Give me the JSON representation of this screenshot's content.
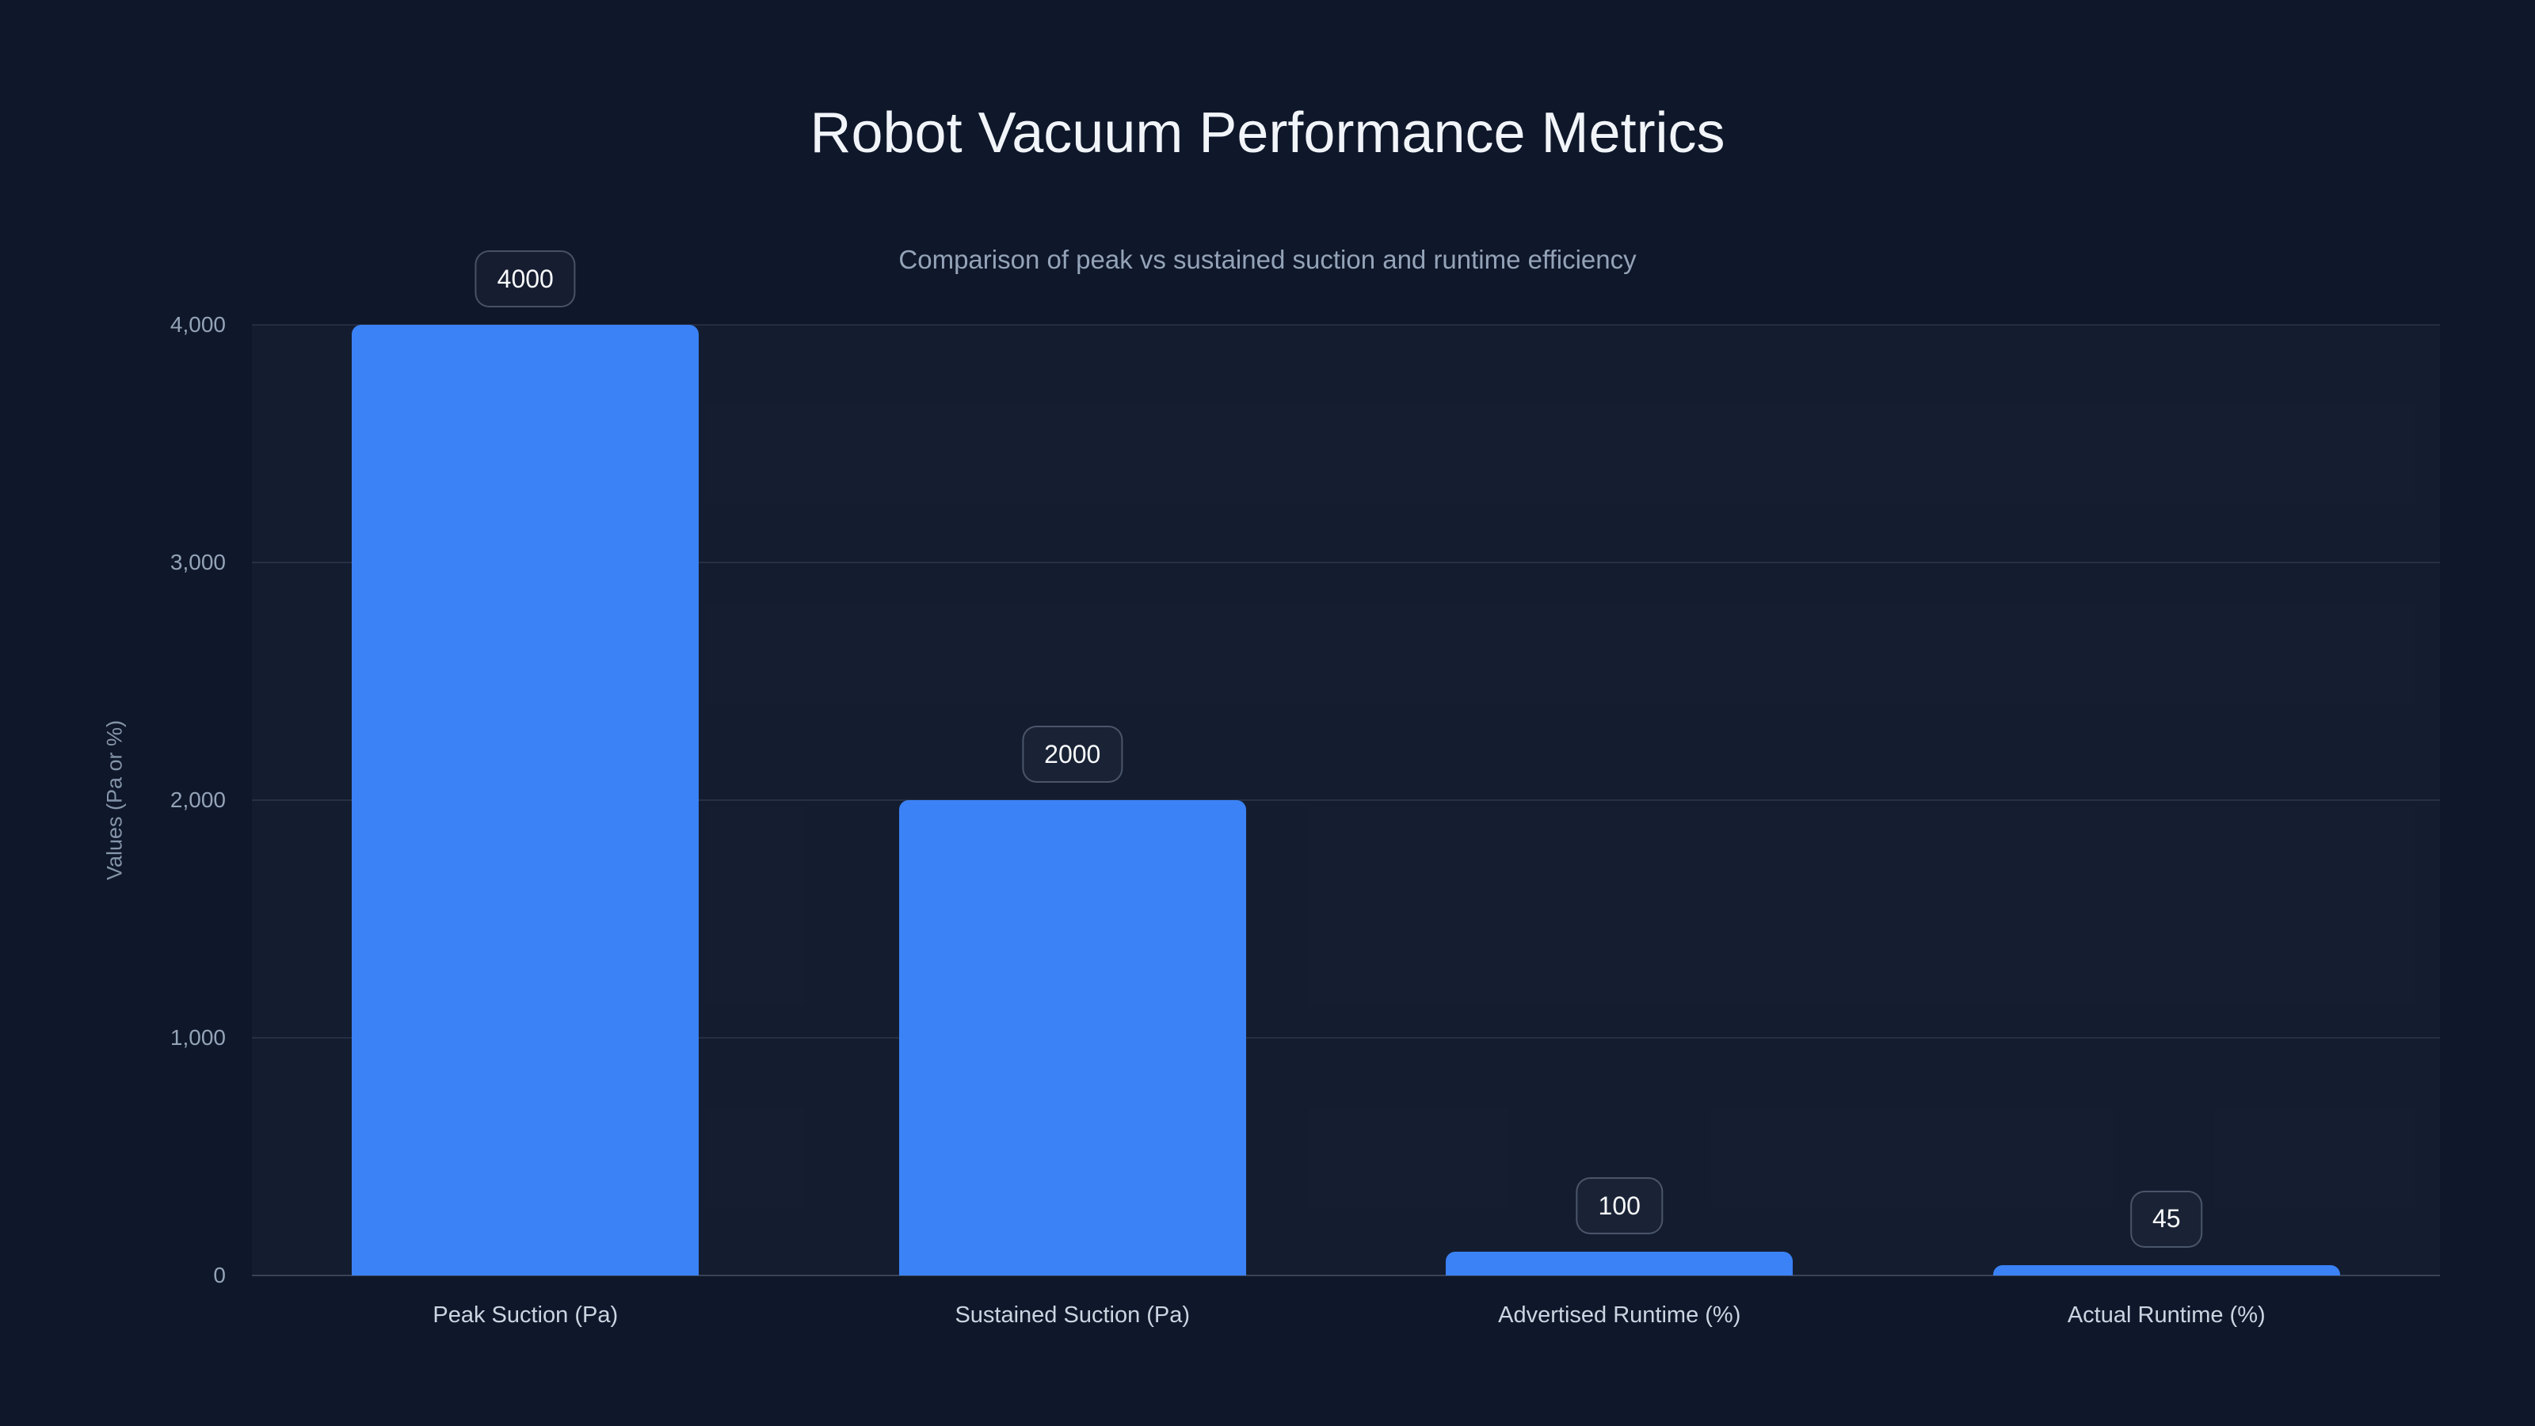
{
  "colors": {
    "background": "#0f172a",
    "bar": "#3b82f6",
    "title_text": "#f1f5f9",
    "subtitle_text": "#94a3b8",
    "tick_text": "#94a3b8",
    "category_text": "#cbd5e1",
    "grid_line": "rgba(148,163,184,0.14)",
    "axis_line": "rgba(148,163,184,0.30)",
    "badge_border": "rgba(148,163,184,0.40)",
    "badge_text": "#f8fafc"
  },
  "chart_data": {
    "type": "bar",
    "title": "Robot Vacuum Performance Metrics",
    "subtitle": "Comparison of peak vs sustained suction and runtime efficiency",
    "categories": [
      "Peak Suction (Pa)",
      "Sustained Suction (Pa)",
      "Advertised Runtime (%)",
      "Actual Runtime (%)"
    ],
    "values": [
      4000,
      2000,
      100,
      45
    ],
    "data_labels": [
      "4000",
      "2000",
      "100",
      "45"
    ],
    "ylabel": "Values (Pa or %)",
    "ylim": [
      0,
      4000
    ],
    "yticks": [
      {
        "label": "0",
        "value": 0
      },
      {
        "label": "1,000",
        "value": 1000
      },
      {
        "label": "2,000",
        "value": 2000
      },
      {
        "label": "3,000",
        "value": 3000
      },
      {
        "label": "4,000",
        "value": 4000
      }
    ],
    "grid": "horizontal",
    "legend": "none",
    "bar_color": "#3b82f6"
  }
}
